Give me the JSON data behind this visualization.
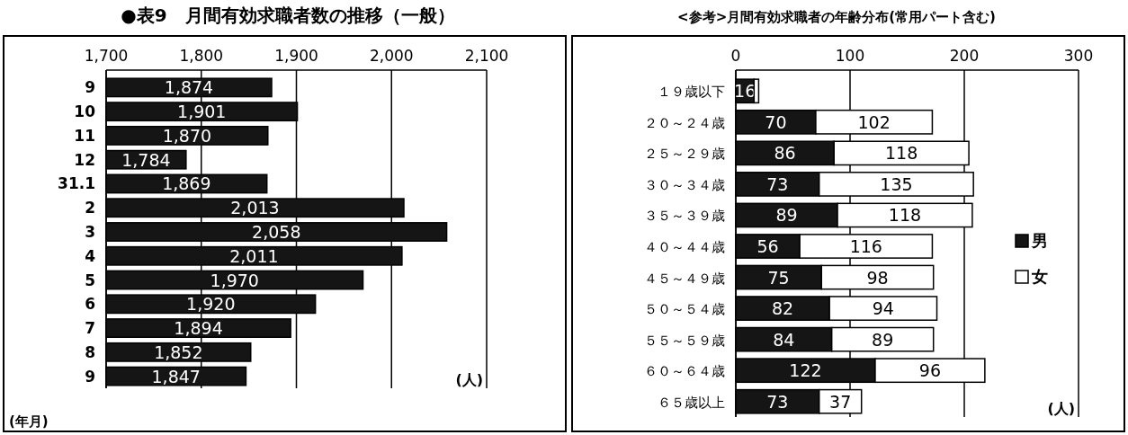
{
  "chart_data": [
    {
      "type": "bar",
      "orientation": "horizontal",
      "title": "●表9　月間有効求職者数の推移（一般）",
      "categories": [
        "9",
        "10",
        "11",
        "12",
        "31.1",
        "2",
        "3",
        "4",
        "5",
        "6",
        "7",
        "8",
        "9"
      ],
      "values": [
        1874,
        1901,
        1870,
        1784,
        1869,
        2013,
        2058,
        2011,
        1970,
        1920,
        1894,
        1852,
        1847
      ],
      "value_labels": [
        "1,874",
        "1,901",
        "1,870",
        "1,784",
        "1,869",
        "2,013",
        "2,058",
        "2,011",
        "1,970",
        "1,920",
        "1,894",
        "1,852",
        "1,847"
      ],
      "color": "#151515",
      "xlim": [
        1700,
        2100
      ],
      "xticks": [
        {
          "value": 1700,
          "label": "1,700"
        },
        {
          "value": 1800,
          "label": "1,800"
        },
        {
          "value": 1900,
          "label": "1,900"
        },
        {
          "value": 2000,
          "label": "2,000"
        },
        {
          "value": 2100,
          "label": "2,100"
        }
      ],
      "grid": "x",
      "annotations": [
        "(人)",
        "(年月)"
      ]
    },
    {
      "type": "bar",
      "orientation": "horizontal",
      "stacked": true,
      "title": "<参考>月間有効求職者の年齢分布(常用パート含む)",
      "categories": [
        "１９歳以下",
        "２０～２４歳",
        "２５～２９歳",
        "３０～３４歳",
        "３５～３９歳",
        "４０～４４歳",
        "４５～４９歳",
        "５０～５４歳",
        "５５～５９歳",
        "６０～６４歳",
        "６５歳以上"
      ],
      "series": [
        {
          "name": "男",
          "color": "#151515",
          "values": [
            16,
            70,
            86,
            73,
            89,
            56,
            75,
            82,
            84,
            122,
            73
          ],
          "value_labels": [
            "16",
            "70",
            "86",
            "73",
            "89",
            "56",
            "75",
            "82",
            "84",
            "122",
            "73"
          ]
        },
        {
          "name": "女",
          "color": "#ffffff",
          "values": [
            4,
            102,
            118,
            135,
            118,
            116,
            98,
            94,
            89,
            96,
            37
          ],
          "value_labels": [
            null,
            "102",
            "118",
            "135",
            "118",
            "116",
            "98",
            "94",
            "89",
            "96",
            "37"
          ]
        }
      ],
      "xlim": [
        0,
        300
      ],
      "xticks": [
        0,
        100,
        200,
        300
      ],
      "grid": "x",
      "legend": "right",
      "annotations": [
        "(人)"
      ]
    }
  ]
}
